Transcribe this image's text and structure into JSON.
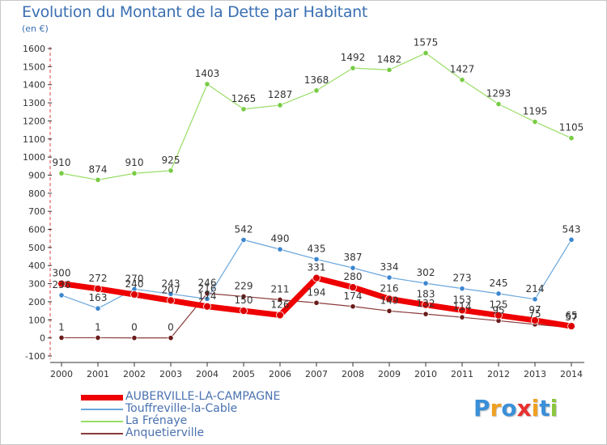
{
  "title": "Evolution du Montant de la Dette par Habitant",
  "unit_label": "(en €)",
  "logo": {
    "letters": [
      "P",
      "r",
      "o",
      "x",
      "i",
      "t",
      "i"
    ],
    "colors": [
      "#3b8fd8",
      "#f0a020",
      "#3b8fd8",
      "#e83030",
      "#f0a020",
      "#3b8fd8",
      "#8cc63f"
    ]
  },
  "chart_data": {
    "type": "line",
    "x": [
      "2000",
      "2001",
      "2002",
      "2003",
      "2004",
      "2005",
      "2006",
      "2007",
      "2008",
      "2009",
      "2010",
      "2011",
      "2012",
      "2013",
      "2014"
    ],
    "ylim": [
      -100,
      1600
    ],
    "yticks": [
      -100,
      0,
      100,
      200,
      300,
      400,
      500,
      600,
      700,
      800,
      900,
      1000,
      1100,
      1200,
      1300,
      1400,
      1500,
      1600
    ],
    "grid": false,
    "series": [
      {
        "name": "La Frénaye",
        "color": "#99dd66",
        "marker": "#77cc44",
        "width": 1.2,
        "values": [
          910,
          874,
          910,
          925,
          1403,
          1265,
          1287,
          1368,
          1492,
          1482,
          1575,
          1427,
          1293,
          1195,
          1105
        ],
        "labels": [
          "910",
          "874",
          "910",
          "925",
          "1403",
          "1265",
          "1287",
          "1368",
          "1492",
          "1482",
          "1575",
          "1427",
          "1293",
          "1195",
          "1105"
        ]
      },
      {
        "name": "Touffreville-la-Cable",
        "color": "#6aa6dc",
        "marker": "#3b86cf",
        "width": 1.2,
        "values": [
          236,
          163,
          270,
          243,
          216,
          542,
          490,
          435,
          387,
          334,
          302,
          273,
          245,
          214,
          543
        ],
        "labels": [
          "236",
          "163",
          "270",
          "243",
          "216",
          "542",
          "490",
          "435",
          "387",
          "334",
          "302",
          "273",
          "245",
          "214",
          "543"
        ]
      },
      {
        "name": "Anquetierville",
        "color": "#8a3a3a",
        "marker": "#6a1a1a",
        "width": 1.2,
        "values": [
          1,
          1,
          0,
          0,
          246,
          229,
          211,
          194,
          174,
          149,
          132,
          114,
          95,
          75,
          57
        ],
        "labels": [
          "1",
          "1",
          "0",
          "0",
          "246",
          "229",
          "211",
          "194",
          "174",
          "149",
          "132",
          "114",
          "95",
          "75",
          "57"
        ]
      },
      {
        "name": "AUBERVILLE-LA-CAMPAGNE",
        "color": "#ee0000",
        "marker": "#dd0000",
        "width": 7,
        "values": [
          300,
          272,
          240,
          207,
          174,
          150,
          126,
          331,
          280,
          216,
          183,
          153,
          125,
          97,
          65
        ],
        "labels": [
          "300",
          "272",
          "240",
          "207",
          "174",
          "150",
          "126",
          "331",
          "280",
          "216",
          "183",
          "153",
          "125",
          "97",
          "65"
        ]
      }
    ],
    "legend_order": [
      "AUBERVILLE-LA-CAMPAGNE",
      "Touffreville-la-Cable",
      "La Frénaye",
      "Anquetierville"
    ]
  }
}
